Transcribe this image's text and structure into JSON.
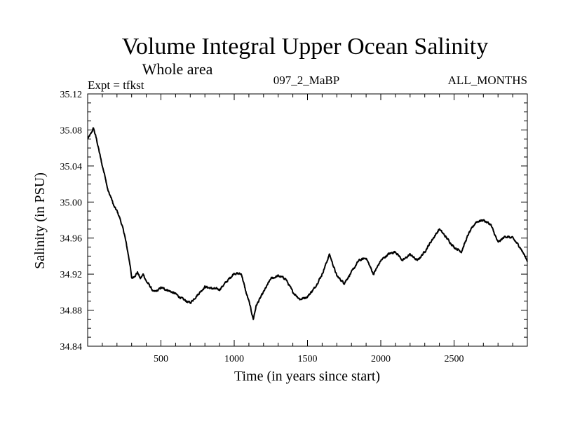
{
  "chart_data": {
    "type": "line",
    "title": "Volume Integral Upper Ocean Salinity",
    "subtitle": "Whole area",
    "annotations": {
      "left": "Expt = tfkst",
      "center": "097_2_MaBP",
      "right": "ALL_MONTHS"
    },
    "xlabel": "Time (in years since start)",
    "ylabel": "Salinity (in PSU)",
    "xlim": [
      0,
      3000
    ],
    "ylim": [
      34.84,
      35.12
    ],
    "x_ticks": [
      500,
      1000,
      1500,
      2000,
      2500
    ],
    "x_tick_labels": [
      "500",
      "1000",
      "1500",
      "2000",
      "2500"
    ],
    "y_ticks": [
      34.84,
      34.88,
      34.92,
      34.96,
      35.0,
      35.04,
      35.08,
      35.12
    ],
    "y_tick_labels": [
      "34.84",
      "34.88",
      "34.92",
      "34.96",
      "35.00",
      "35.04",
      "35.08",
      "35.12"
    ],
    "grid": false,
    "series": [
      {
        "name": "Salinity",
        "color": "#000000",
        "x": [
          0,
          20,
          40,
          60,
          80,
          100,
          120,
          140,
          160,
          180,
          200,
          220,
          250,
          270,
          290,
          300,
          320,
          340,
          360,
          380,
          400,
          420,
          450,
          480,
          500,
          550,
          600,
          650,
          700,
          750,
          800,
          850,
          900,
          950,
          1000,
          1050,
          1080,
          1100,
          1130,
          1150,
          1200,
          1250,
          1300,
          1350,
          1400,
          1450,
          1500,
          1550,
          1600,
          1650,
          1700,
          1750,
          1800,
          1850,
          1900,
          1950,
          2000,
          2050,
          2100,
          2150,
          2200,
          2250,
          2300,
          2350,
          2400,
          2450,
          2500,
          2550,
          2600,
          2650,
          2700,
          2750,
          2800,
          2850,
          2900,
          2950,
          3000
        ],
        "values": [
          35.07,
          35.075,
          35.082,
          35.07,
          35.055,
          35.04,
          35.028,
          35.012,
          35.005,
          34.995,
          34.99,
          34.982,
          34.965,
          34.948,
          34.93,
          34.915,
          34.918,
          34.922,
          34.915,
          34.92,
          34.912,
          34.908,
          34.9,
          34.902,
          34.905,
          34.902,
          34.898,
          34.892,
          34.888,
          34.897,
          34.906,
          34.904,
          34.903,
          34.912,
          34.921,
          34.92,
          34.9,
          34.89,
          34.87,
          34.885,
          34.9,
          34.915,
          34.918,
          34.915,
          34.9,
          34.892,
          34.895,
          34.905,
          34.92,
          34.942,
          34.918,
          34.91,
          34.922,
          34.935,
          34.938,
          34.92,
          34.935,
          34.942,
          34.945,
          34.935,
          34.942,
          34.935,
          34.945,
          34.958,
          34.97,
          34.96,
          34.95,
          34.945,
          34.965,
          34.978,
          34.98,
          34.975,
          34.955,
          34.962,
          34.96,
          34.95,
          34.935
        ]
      }
    ]
  }
}
